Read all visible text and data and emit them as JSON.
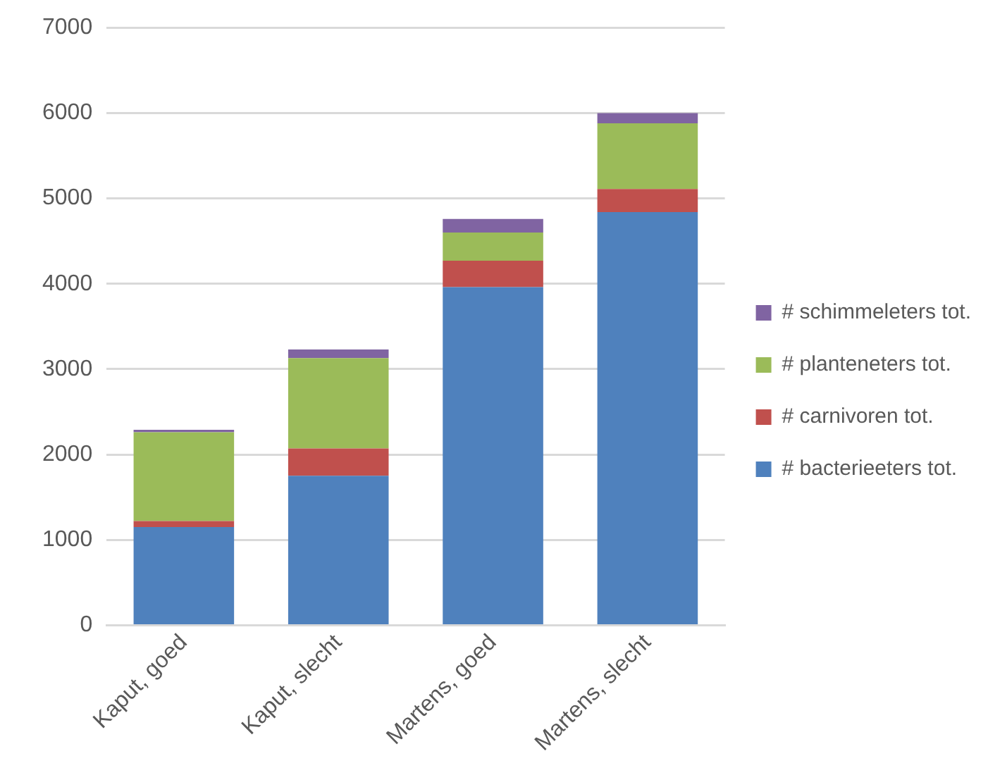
{
  "chart_data": {
    "type": "bar",
    "stacked": true,
    "categories": [
      "Kaput, goed",
      "Kaput, slecht",
      "Martens, goed",
      "Martens, slecht"
    ],
    "series": [
      {
        "name": "# bacterieeters tot.",
        "color": "#4f81bd",
        "values": [
          1150,
          1750,
          3960,
          4840
        ]
      },
      {
        "name": "# carnivoren tot.",
        "color": "#c0504d",
        "values": [
          70,
          320,
          310,
          270
        ]
      },
      {
        "name": "# planteneters tot.",
        "color": "#9bbb59",
        "values": [
          1040,
          1060,
          330,
          770
        ]
      },
      {
        "name": "# schimmeleters tot.",
        "color": "#8064a2",
        "values": [
          30,
          100,
          160,
          120
        ]
      }
    ],
    "ylim": [
      0,
      7000
    ],
    "yticks": [
      0,
      1000,
      2000,
      3000,
      4000,
      5000,
      6000,
      7000
    ],
    "grid": "y",
    "legend": "right"
  }
}
